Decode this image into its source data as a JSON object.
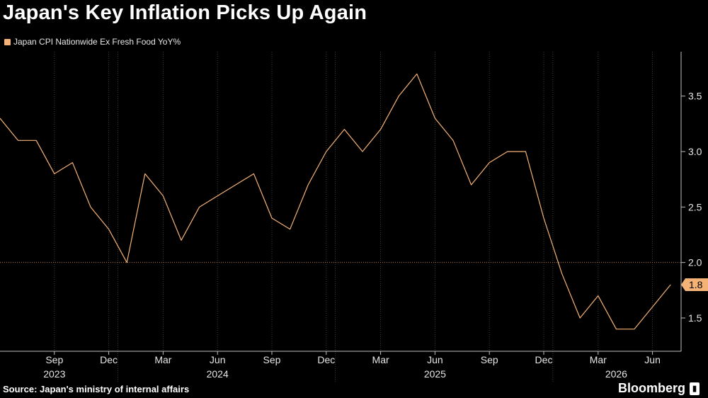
{
  "title": "Japan's Key Inflation Picks Up Again",
  "source": "Source: Japan's ministry of internal affairs",
  "brand": "Bloomberg",
  "accent_color": "#f5b276",
  "chart_data": {
    "type": "line",
    "series": [
      {
        "name": "Japan CPI Nationwide Ex Fresh Food YoY%",
        "color": "#f5b276",
        "x": [
          "2023-06",
          "2023-07",
          "2023-08",
          "2023-09",
          "2023-10",
          "2023-11",
          "2023-12",
          "2024-01",
          "2024-02",
          "2024-03",
          "2024-04",
          "2024-05",
          "2024-06",
          "2024-07",
          "2024-08",
          "2024-09",
          "2024-10",
          "2024-11",
          "2024-12",
          "2025-01",
          "2025-02",
          "2025-03",
          "2025-04",
          "2025-05",
          "2025-06",
          "2025-07",
          "2025-08",
          "2025-09",
          "2025-10",
          "2025-11",
          "2025-12",
          "2026-01",
          "2026-02",
          "2026-03",
          "2026-04",
          "2026-05",
          "2026-06",
          "2026-07"
        ],
        "values": [
          3.3,
          3.1,
          3.1,
          2.8,
          2.9,
          2.5,
          2.3,
          2.0,
          2.8,
          2.6,
          2.2,
          2.5,
          2.6,
          2.7,
          2.8,
          2.4,
          2.3,
          2.7,
          3.0,
          3.2,
          3.0,
          3.2,
          3.5,
          3.7,
          3.3,
          3.1,
          2.7,
          2.9,
          3.0,
          3.0,
          2.4,
          1.9,
          1.5,
          1.7,
          1.4,
          1.4,
          1.6,
          1.8
        ]
      }
    ],
    "last_value_label": "1.8",
    "x_tick_labels": [
      {
        "x": "2023-09",
        "label": "Sep"
      },
      {
        "x": "2023-12",
        "label": "Dec"
      },
      {
        "x": "2024-03",
        "label": "Mar"
      },
      {
        "x": "2024-06",
        "label": "Jun"
      },
      {
        "x": "2024-09",
        "label": "Sep"
      },
      {
        "x": "2024-12",
        "label": "Dec"
      },
      {
        "x": "2025-03",
        "label": "Mar"
      },
      {
        "x": "2025-06",
        "label": "Jun"
      },
      {
        "x": "2025-09",
        "label": "Sep"
      },
      {
        "x": "2025-12",
        "label": "Dec"
      },
      {
        "x": "2026-03",
        "label": "Mar"
      },
      {
        "x": "2026-06",
        "label": "Jun"
      }
    ],
    "x_year_labels": [
      {
        "x": "2023-09",
        "label": "2023"
      },
      {
        "x": "2024-06",
        "label": "2024"
      },
      {
        "x": "2025-06",
        "label": "2025"
      },
      {
        "x": "2026-04",
        "label": "2026"
      }
    ],
    "y_ticks": [
      1.5,
      2.0,
      2.5,
      3.0,
      3.5
    ],
    "y_tick_labels": [
      "1.5",
      "2.0",
      "2.5",
      "3.0",
      "3.5"
    ],
    "ylim": [
      1.2,
      3.9
    ],
    "reference_line": 2.0,
    "grid": "vertical",
    "y_axis_side": "right",
    "legend_position": "top-left"
  }
}
